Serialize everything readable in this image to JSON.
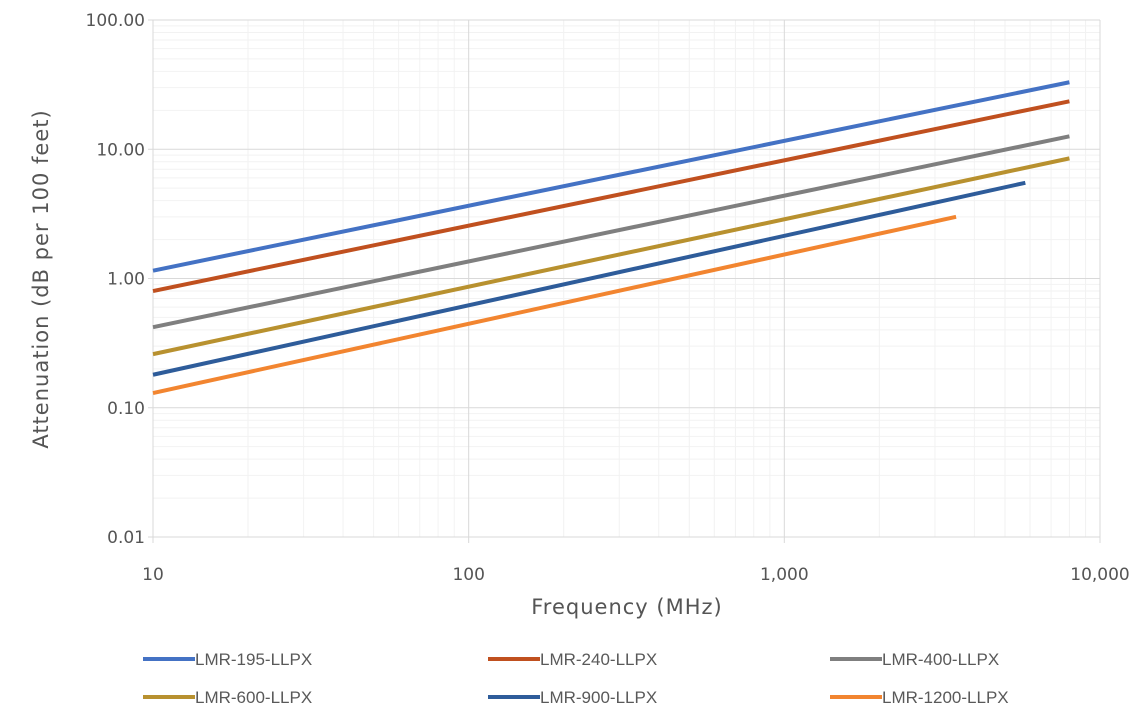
{
  "chart_data": {
    "type": "line",
    "title": "",
    "xlabel": "Frequency (MHz)",
    "ylabel": "Attenuation (dB per 100 feet)",
    "xscale": "log",
    "yscale": "log",
    "xlim": [
      10,
      10000
    ],
    "ylim": [
      0.01,
      100
    ],
    "x_tick_labels": [
      "10",
      "100",
      "1,000",
      "10,000"
    ],
    "y_tick_labels": [
      "100.00",
      "10.00",
      "1.00",
      "0.10",
      "0.01"
    ],
    "grid": true,
    "legend_position": "bottom",
    "series": [
      {
        "name": "LMR-195-LLPX",
        "color": "#4472c4",
        "x": [
          10,
          8000
        ],
        "y": [
          1.15,
          33
        ]
      },
      {
        "name": "LMR-240-LLPX",
        "color": "#c0501f",
        "x": [
          10,
          8000
        ],
        "y": [
          0.8,
          23.5
        ]
      },
      {
        "name": "LMR-400-LLPX",
        "color": "#7f7f7f",
        "x": [
          10,
          8000
        ],
        "y": [
          0.42,
          12.6
        ]
      },
      {
        "name": "LMR-600-LLPX",
        "color": "#b8912f",
        "x": [
          10,
          8000
        ],
        "y": [
          0.26,
          8.5
        ]
      },
      {
        "name": "LMR-900-LLPX",
        "color": "#2e5c9a",
        "x": [
          10,
          5800
        ],
        "y": [
          0.18,
          5.5
        ]
      },
      {
        "name": "LMR-1200-LLPX",
        "color": "#f28530",
        "x": [
          10,
          3500
        ],
        "y": [
          0.13,
          3.0
        ]
      }
    ]
  }
}
